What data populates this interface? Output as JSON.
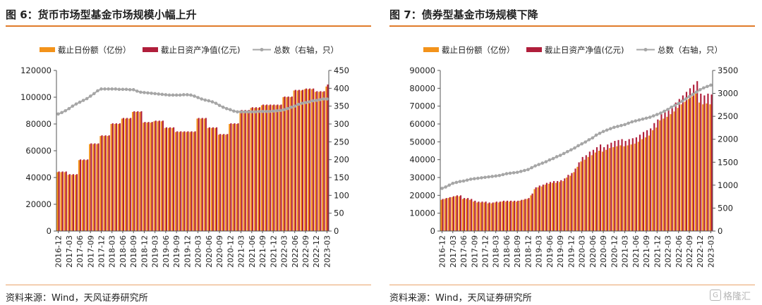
{
  "colors": {
    "bar_shares": "#f3931b",
    "bar_nav": "#b01e3b",
    "line_count": "#a6a6a6",
    "accent_rule": "#e07b2a"
  },
  "left": {
    "title": "图 6：货币市场型基金市场规模小幅上升",
    "source": "资料来源：Wind，天风证券研究所"
  },
  "right": {
    "title": "图 7：债券型基金市场规模下降",
    "source": "资料来源：Wind，天风证券研究所"
  },
  "watermark": {
    "box_glyph": "G",
    "text": "格隆汇"
  },
  "chart_data": [
    {
      "type": "bar",
      "title": "图 6：货币市场型基金市场规模小幅上升",
      "legend": [
        "截止日份额（亿份）",
        "截止日资产净值(亿元)",
        "总数（右轴，只）"
      ],
      "legend_position": "top",
      "ylim": [
        0,
        120000
      ],
      "y_ticks": [
        0,
        20000,
        40000,
        60000,
        80000,
        100000,
        120000
      ],
      "y2lim": [
        0,
        450
      ],
      "y2_ticks": [
        0,
        50,
        100,
        150,
        200,
        250,
        300,
        350,
        400,
        450
      ],
      "x_tick_labels": [
        "2016-12",
        "2017-03",
        "2017-06",
        "2017-09",
        "2017-12",
        "2018-03",
        "2018-06",
        "2018-09",
        "2018-12",
        "2019-03",
        "2019-06",
        "2019-09",
        "2019-12",
        "2020-03",
        "2020-06",
        "2020-09",
        "2020-12",
        "2021-03",
        "2021-06",
        "2021-09",
        "2021-12",
        "2022-03",
        "2022-06",
        "2022-09",
        "2022-12",
        "2023-03"
      ],
      "categories": [
        "2016-12",
        "2017-01",
        "2017-02",
        "2017-03",
        "2017-04",
        "2017-05",
        "2017-06",
        "2017-07",
        "2017-08",
        "2017-09",
        "2017-10",
        "2017-11",
        "2017-12",
        "2018-01",
        "2018-02",
        "2018-03",
        "2018-04",
        "2018-05",
        "2018-06",
        "2018-07",
        "2018-08",
        "2018-09",
        "2018-10",
        "2018-11",
        "2018-12",
        "2019-01",
        "2019-02",
        "2019-03",
        "2019-04",
        "2019-05",
        "2019-06",
        "2019-07",
        "2019-08",
        "2019-09",
        "2019-10",
        "2019-11",
        "2019-12",
        "2020-01",
        "2020-02",
        "2020-03",
        "2020-04",
        "2020-05",
        "2020-06",
        "2020-07",
        "2020-08",
        "2020-09",
        "2020-10",
        "2020-11",
        "2020-12",
        "2021-01",
        "2021-02",
        "2021-03",
        "2021-04",
        "2021-05",
        "2021-06",
        "2021-07",
        "2021-08",
        "2021-09",
        "2021-10",
        "2021-11",
        "2021-12",
        "2022-01",
        "2022-02",
        "2022-03",
        "2022-04",
        "2022-05",
        "2022-06",
        "2022-07",
        "2022-08",
        "2022-09",
        "2022-10",
        "2022-11",
        "2022-12",
        "2023-01",
        "2023-02",
        "2023-03"
      ],
      "series": [
        {
          "name": "截止日份额（亿份）",
          "kind": "bar",
          "axis": "left",
          "values": [
            44000,
            44000,
            44000,
            42000,
            42000,
            42000,
            53000,
            53000,
            53000,
            65000,
            65000,
            65000,
            71000,
            71000,
            71000,
            80000,
            80000,
            80000,
            84000,
            84000,
            84000,
            89000,
            89000,
            89000,
            81000,
            81000,
            81000,
            82000,
            82000,
            82000,
            77000,
            77000,
            77000,
            74000,
            74000,
            74000,
            74000,
            74000,
            74000,
            84000,
            84000,
            84000,
            77000,
            77000,
            77000,
            72000,
            72000,
            72000,
            80000,
            80000,
            80000,
            90000,
            90000,
            90000,
            92000,
            92000,
            92000,
            94000,
            94000,
            94000,
            94000,
            94000,
            94000,
            100000,
            100000,
            100000,
            105000,
            105000,
            105000,
            106000,
            106000,
            106000,
            104000,
            104000,
            104000,
            108000
          ]
        },
        {
          "name": "截止日资产净值(亿元)",
          "kind": "bar",
          "axis": "left",
          "values": [
            44500,
            44500,
            44500,
            42500,
            42500,
            42500,
            53500,
            53500,
            53500,
            65500,
            65500,
            65500,
            71500,
            71500,
            71500,
            80500,
            80500,
            80500,
            84500,
            84500,
            84500,
            89500,
            89500,
            89500,
            81500,
            81500,
            81500,
            82500,
            82500,
            82500,
            77500,
            77500,
            77500,
            74500,
            74500,
            74500,
            74500,
            74500,
            74500,
            84500,
            84500,
            84500,
            77500,
            77500,
            77500,
            72500,
            72500,
            72500,
            80500,
            80500,
            80500,
            90500,
            90500,
            90500,
            92500,
            92500,
            92500,
            94500,
            94500,
            94500,
            94500,
            94500,
            94500,
            100500,
            100500,
            100500,
            105500,
            105500,
            105500,
            106500,
            106500,
            106500,
            104500,
            104500,
            104500,
            109500
          ]
        },
        {
          "name": "总数（右轴，只）",
          "kind": "line",
          "axis": "right",
          "values": [
            328,
            332,
            337,
            343,
            350,
            356,
            361,
            366,
            371,
            378,
            385,
            393,
            398,
            398,
            398,
            398,
            398,
            397,
            397,
            397,
            396,
            396,
            392,
            389,
            388,
            387,
            386,
            385,
            384,
            383,
            382,
            381,
            381,
            381,
            381,
            382,
            382,
            381,
            378,
            374,
            370,
            367,
            365,
            362,
            358,
            352,
            347,
            343,
            340,
            336,
            334,
            334,
            334,
            334,
            334,
            334,
            335,
            335,
            335,
            335,
            336,
            337,
            338,
            340,
            343,
            347,
            350,
            355,
            358,
            360,
            362,
            365,
            366,
            368,
            370,
            370
          ]
        }
      ]
    },
    {
      "type": "bar",
      "title": "图 7：债券型基金市场规模下降",
      "legend": [
        "截止日份额（亿份）",
        "截止日资产净值(亿元)",
        "总数（右轴，只）"
      ],
      "legend_position": "top",
      "ylim": [
        0,
        90000
      ],
      "y_ticks": [
        0,
        10000,
        20000,
        30000,
        40000,
        50000,
        60000,
        70000,
        80000,
        90000
      ],
      "y2lim": [
        0,
        3500
      ],
      "y2_ticks": [
        0,
        500,
        1000,
        1500,
        2000,
        2500,
        3000,
        3500
      ],
      "x_tick_labels": [
        "2016-12",
        "2017-03",
        "2017-06",
        "2017-09",
        "2017-12",
        "2018-03",
        "2018-06",
        "2018-09",
        "2018-12",
        "2019-03",
        "2019-06",
        "2019-09",
        "2019-12",
        "2020-03",
        "2020-06",
        "2020-09",
        "2020-12",
        "2021-03",
        "2021-06",
        "2021-09",
        "2021-12",
        "2022-03",
        "2022-06",
        "2022-09",
        "2022-12",
        "2023-03"
      ],
      "categories": [
        "2016-12",
        "2017-01",
        "2017-02",
        "2017-03",
        "2017-04",
        "2017-05",
        "2017-06",
        "2017-07",
        "2017-08",
        "2017-09",
        "2017-10",
        "2017-11",
        "2017-12",
        "2018-01",
        "2018-02",
        "2018-03",
        "2018-04",
        "2018-05",
        "2018-06",
        "2018-07",
        "2018-08",
        "2018-09",
        "2018-10",
        "2018-11",
        "2018-12",
        "2019-01",
        "2019-02",
        "2019-03",
        "2019-04",
        "2019-05",
        "2019-06",
        "2019-07",
        "2019-08",
        "2019-09",
        "2019-10",
        "2019-11",
        "2019-12",
        "2020-01",
        "2020-02",
        "2020-03",
        "2020-04",
        "2020-05",
        "2020-06",
        "2020-07",
        "2020-08",
        "2020-09",
        "2020-10",
        "2020-11",
        "2020-12",
        "2021-01",
        "2021-02",
        "2021-03",
        "2021-04",
        "2021-05",
        "2021-06",
        "2021-07",
        "2021-08",
        "2021-09",
        "2021-10",
        "2021-11",
        "2021-12",
        "2022-01",
        "2022-02",
        "2022-03",
        "2022-04",
        "2022-05",
        "2022-06",
        "2022-07",
        "2022-08",
        "2022-09",
        "2022-10",
        "2022-11",
        "2022-12",
        "2023-01",
        "2023-02",
        "2023-03"
      ],
      "series": [
        {
          "name": "截止日份额（亿份）",
          "kind": "bar",
          "axis": "left",
          "values": [
            17500,
            18000,
            18500,
            19000,
            19500,
            19500,
            18000,
            18000,
            17500,
            16500,
            16000,
            16000,
            16000,
            15500,
            15500,
            16000,
            16000,
            16500,
            16500,
            16500,
            16500,
            16500,
            17000,
            17500,
            18000,
            20000,
            23500,
            24500,
            25000,
            26000,
            26500,
            27000,
            27000,
            27500,
            28000,
            30000,
            31000,
            33000,
            36000,
            39000,
            40000,
            41500,
            42500,
            44000,
            45000,
            44500,
            45500,
            46500,
            47000,
            47500,
            48000,
            47500,
            48000,
            48500,
            49000,
            50000,
            51500,
            52500,
            53500,
            56500,
            58000,
            62000,
            63000,
            64000,
            65500,
            67000,
            69000,
            71000,
            72500,
            74000,
            75500,
            77000,
            72000,
            71000,
            71500,
            71000
          ]
        },
        {
          "name": "截止日资产净值(亿元)",
          "kind": "bar",
          "axis": "left",
          "values": [
            18000,
            18500,
            19000,
            19500,
            20000,
            20000,
            18500,
            18500,
            18000,
            17000,
            16500,
            16500,
            16500,
            16000,
            16000,
            16500,
            16500,
            17000,
            17000,
            17000,
            17000,
            17000,
            17500,
            18000,
            18500,
            21000,
            24500,
            25500,
            26000,
            27000,
            27500,
            28000,
            28000,
            28500,
            29500,
            31500,
            32500,
            35000,
            38500,
            41500,
            42500,
            44500,
            45500,
            47000,
            48500,
            47000,
            48500,
            49500,
            50500,
            51000,
            51500,
            50500,
            51500,
            52000,
            52500,
            54000,
            55500,
            56500,
            57500,
            60500,
            62500,
            66500,
            67500,
            68500,
            70000,
            72000,
            74000,
            76000,
            78000,
            80000,
            82000,
            84000,
            77000,
            76000,
            77000,
            76500
          ]
        },
        {
          "name": "总数（右轴，只）",
          "kind": "line",
          "axis": "right",
          "values": [
            930,
            960,
            1000,
            1040,
            1060,
            1080,
            1090,
            1110,
            1130,
            1140,
            1150,
            1160,
            1170,
            1180,
            1190,
            1200,
            1210,
            1230,
            1250,
            1260,
            1270,
            1280,
            1300,
            1320,
            1340,
            1380,
            1420,
            1450,
            1480,
            1510,
            1550,
            1580,
            1620,
            1650,
            1690,
            1730,
            1770,
            1810,
            1860,
            1900,
            1940,
            1990,
            2030,
            2090,
            2130,
            2170,
            2200,
            2230,
            2260,
            2280,
            2300,
            2320,
            2350,
            2380,
            2400,
            2420,
            2440,
            2460,
            2480,
            2510,
            2540,
            2570,
            2610,
            2650,
            2700,
            2740,
            2780,
            2830,
            2880,
            2930,
            2980,
            3030,
            3080,
            3120,
            3150,
            3180
          ]
        }
      ]
    }
  ]
}
